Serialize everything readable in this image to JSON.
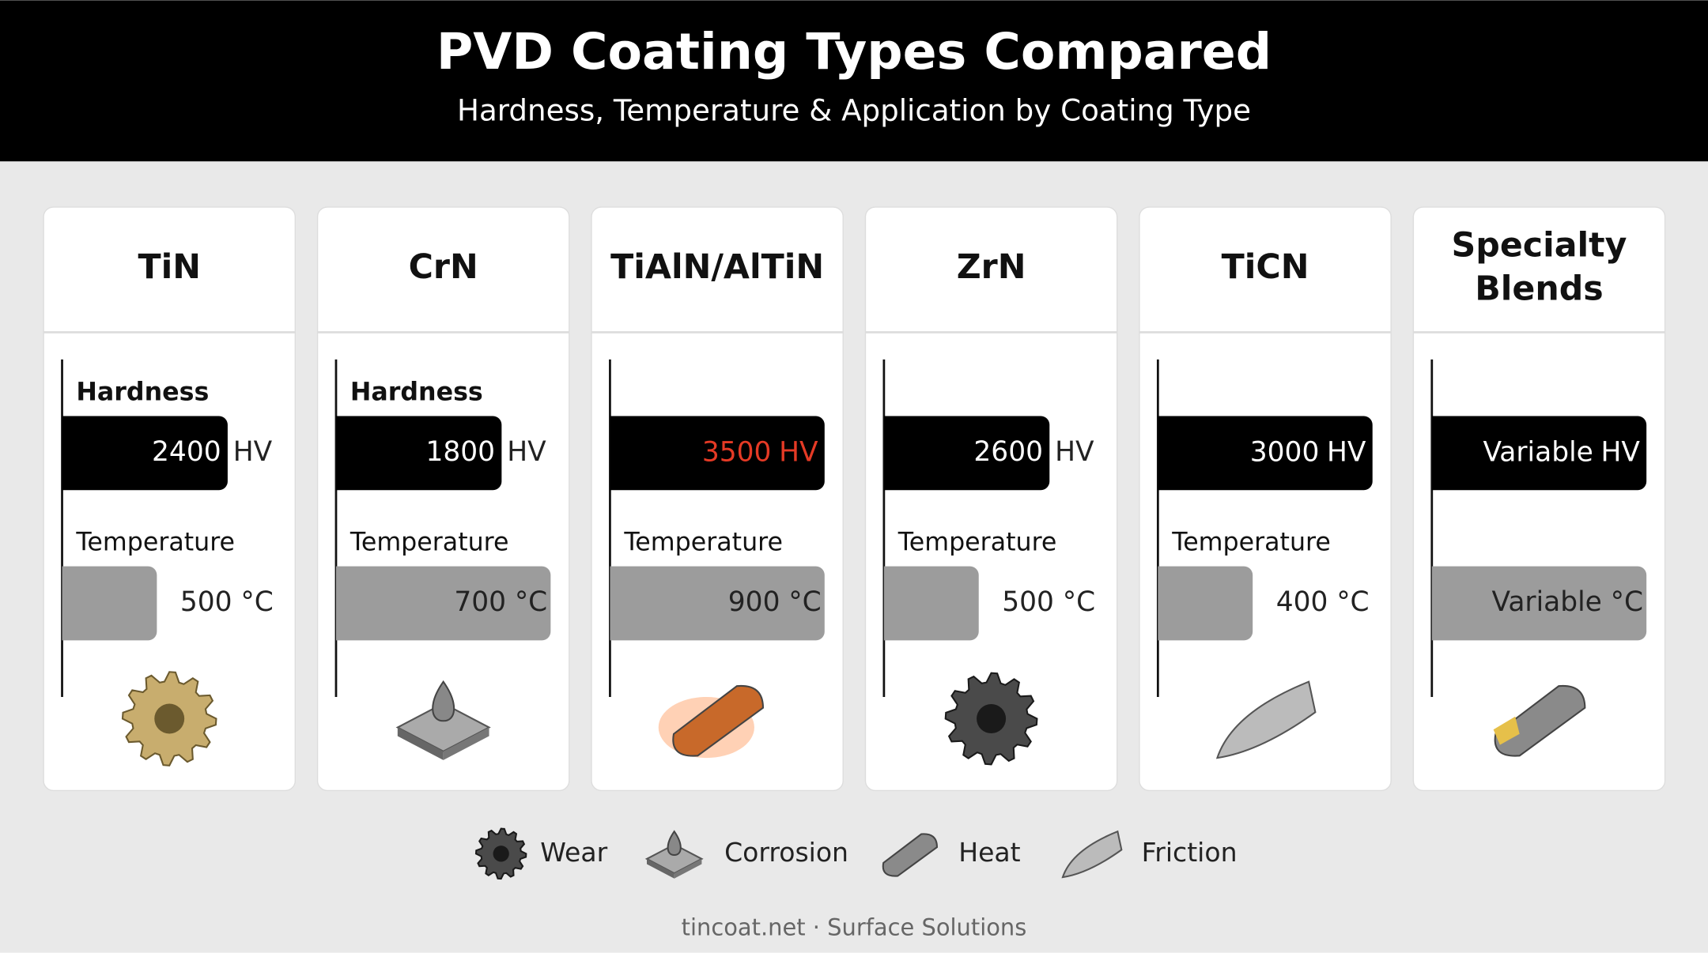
{
  "header": {
    "title": "PVD Coating Types Compared",
    "subtitle": "Hardness, Temperature & Application by Coating Type"
  },
  "cards": [
    {
      "name_lines": [
        "TiN"
      ],
      "hardness_label": "Hardness",
      "hardness": "2400",
      "hardness_unit": "HV",
      "temperature_label": "Temperature",
      "temperature": "500 °C"
    },
    {
      "name_lines": [
        "CrN"
      ],
      "hardness_label": "Hardness",
      "hardness": "1800",
      "hardness_unit": "HV",
      "temperature_label": "Temperature",
      "temperature": "700 °C"
    },
    {
      "name_lines": [
        "TiAlN/AlTiN"
      ],
      "hardness": "3500",
      "hardness_unit": "HV",
      "temperature_label": "Temperature",
      "temperature": "900 °C"
    },
    {
      "name_lines": [
        "ZrN"
      ],
      "hardness": "2600",
      "hardness_unit": "HV",
      "temperature_label": "Temperature",
      "temperature": "500 °C"
    },
    {
      "name_lines": [
        "TiCN"
      ],
      "hardness": "3000",
      "hardness_unit": "HV",
      "temperature_label": "Temperature",
      "temperature": "400 °C"
    },
    {
      "name_lines": [
        "Specialty",
        "Blends"
      ],
      "hardness": "Variable",
      "hardness_unit": "HV",
      "temperature": "Variable °C"
    }
  ],
  "legend": [
    {
      "label": "Wear"
    },
    {
      "label": "Corrosion"
    },
    {
      "label": "Heat"
    },
    {
      "label": "Friction"
    }
  ],
  "footer": "tincoat.net · Surface Solutions"
}
